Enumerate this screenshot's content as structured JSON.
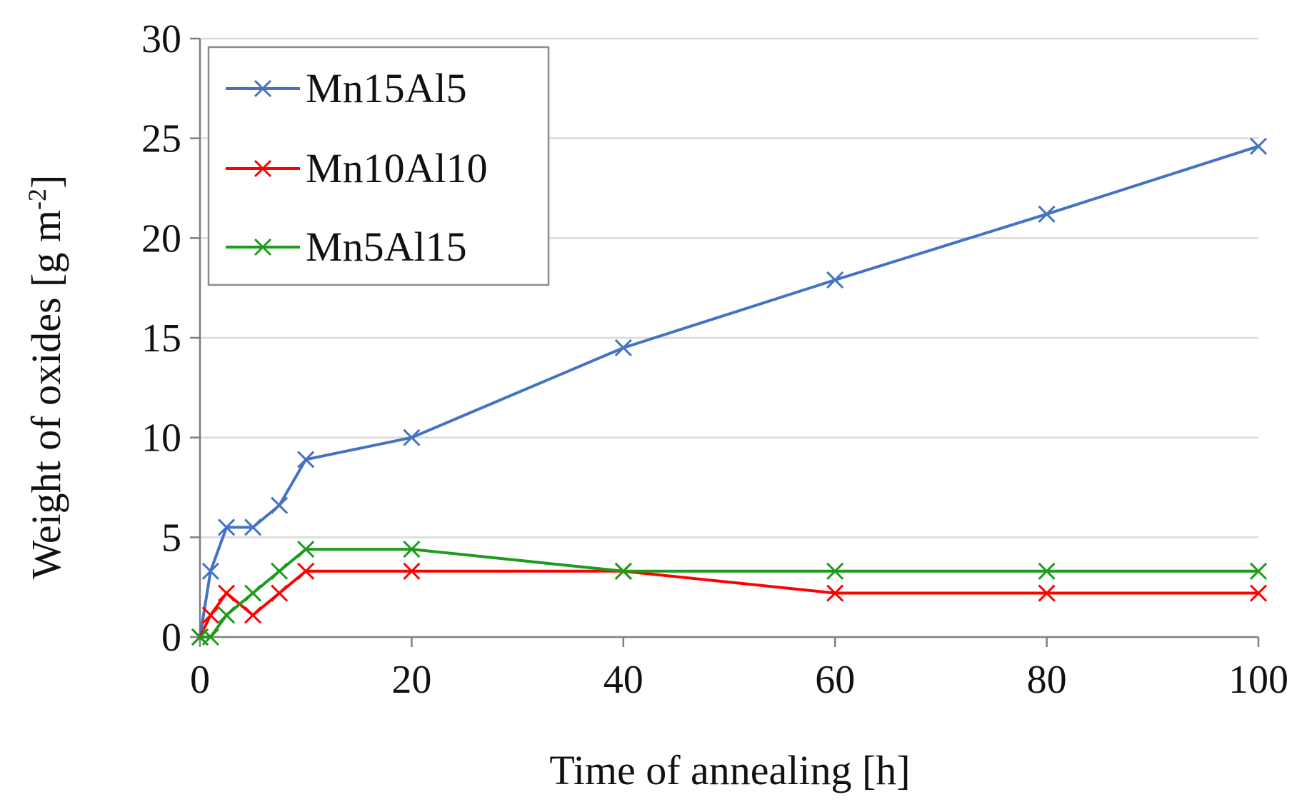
{
  "chart_data": {
    "type": "line",
    "xlabel": "Time of annealing [h]",
    "ylabel_main": "Weight of oxides [g m",
    "ylabel_sup": "-2",
    "ylabel_close": "]",
    "xlim": [
      0,
      100
    ],
    "ylim": [
      0,
      30
    ],
    "xticks": [
      "0",
      "20",
      "40",
      "60",
      "80",
      "100"
    ],
    "yticks": [
      "0",
      "5",
      "10",
      "15",
      "20",
      "25",
      "30"
    ],
    "grid": "horizontal",
    "legend_position": "top-left",
    "marker": "x",
    "series": [
      {
        "name": "Mn15Al5",
        "color": "#4472C4",
        "x": [
          0,
          1,
          2.5,
          5,
          7.5,
          10,
          20,
          40,
          60,
          80,
          100
        ],
        "y": [
          0,
          3.3,
          5.5,
          5.5,
          6.6,
          8.9,
          10.0,
          14.5,
          17.9,
          21.2,
          24.6
        ]
      },
      {
        "name": "Mn10Al10",
        "color": "#FF0000",
        "x": [
          0,
          1,
          2.5,
          5,
          7.5,
          10,
          20,
          40,
          60,
          80,
          100
        ],
        "y": [
          0,
          1.1,
          2.2,
          1.1,
          2.2,
          3.3,
          3.3,
          3.3,
          2.2,
          2.2,
          2.2
        ]
      },
      {
        "name": "Mn5Al15",
        "color": "#1C9B1C",
        "x": [
          0,
          1,
          2.5,
          5,
          7.5,
          10,
          20,
          40,
          60,
          80,
          100
        ],
        "y": [
          0,
          0,
          1.1,
          2.2,
          3.3,
          4.4,
          4.4,
          3.3,
          3.3,
          3.3,
          3.3
        ]
      }
    ]
  }
}
